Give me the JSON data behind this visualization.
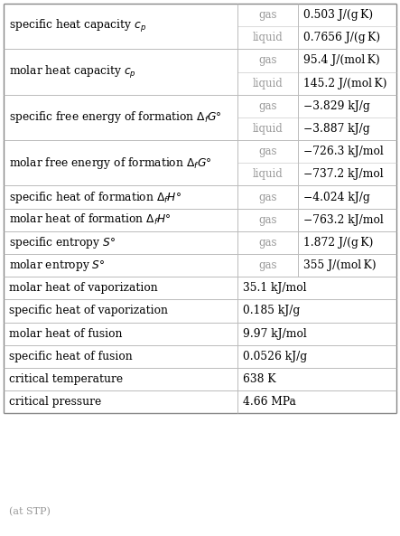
{
  "rows": [
    {
      "property": "specific heat capacity $c_p$",
      "phase": "gas",
      "value": "0.503 J/(g K)",
      "span": false,
      "group_start": true
    },
    {
      "property": "",
      "phase": "liquid",
      "value": "0.7656 J/(g K)",
      "span": false,
      "group_start": false
    },
    {
      "property": "molar heat capacity $c_p$",
      "phase": "gas",
      "value": "95.4 J/(mol K)",
      "span": false,
      "group_start": true
    },
    {
      "property": "",
      "phase": "liquid",
      "value": "145.2 J/(mol K)",
      "span": false,
      "group_start": false
    },
    {
      "property": "specific free energy of formation $\\Delta_f G°$",
      "phase": "gas",
      "value": "−3.829 kJ/g",
      "span": false,
      "group_start": true
    },
    {
      "property": "",
      "phase": "liquid",
      "value": "−3.887 kJ/g",
      "span": false,
      "group_start": false
    },
    {
      "property": "molar free energy of formation $\\Delta_f G°$",
      "phase": "gas",
      "value": "−726.3 kJ/mol",
      "span": false,
      "group_start": true
    },
    {
      "property": "",
      "phase": "liquid",
      "value": "−737.2 kJ/mol",
      "span": false,
      "group_start": false
    },
    {
      "property": "specific heat of formation $\\Delta_f H°$",
      "phase": "gas",
      "value": "−4.024 kJ/g",
      "span": false,
      "group_start": true
    },
    {
      "property": "molar heat of formation $\\Delta_f H°$",
      "phase": "gas",
      "value": "−763.2 kJ/mol",
      "span": false,
      "group_start": true
    },
    {
      "property": "specific entropy $S°$",
      "phase": "gas",
      "value": "1.872 J/(g K)",
      "span": false,
      "group_start": true
    },
    {
      "property": "molar entropy $S°$",
      "phase": "gas",
      "value": "355 J/(mol K)",
      "span": false,
      "group_start": true
    },
    {
      "property": "molar heat of vaporization",
      "phase": "",
      "value": "35.1 kJ/mol",
      "span": true,
      "group_start": true
    },
    {
      "property": "specific heat of vaporization",
      "phase": "",
      "value": "0.185 kJ/g",
      "span": true,
      "group_start": true
    },
    {
      "property": "molar heat of fusion",
      "phase": "",
      "value": "9.97 kJ/mol",
      "span": true,
      "group_start": true
    },
    {
      "property": "specific heat of fusion",
      "phase": "",
      "value": "0.0526 kJ/g",
      "span": true,
      "group_start": true
    },
    {
      "property": "critical temperature",
      "phase": "",
      "value": "638 K",
      "span": true,
      "group_start": true
    },
    {
      "property": "critical pressure",
      "phase": "",
      "value": "4.66 MPa",
      "span": true,
      "group_start": true
    }
  ],
  "footer": "(at STP)",
  "bg_color": "#ffffff",
  "line_color": "#bbbbbb",
  "text_color": "#000000",
  "phase_color": "#999999",
  "property_fontsize": 8.8,
  "value_fontsize": 8.8,
  "phase_fontsize": 8.5,
  "footer_fontsize": 8.0
}
